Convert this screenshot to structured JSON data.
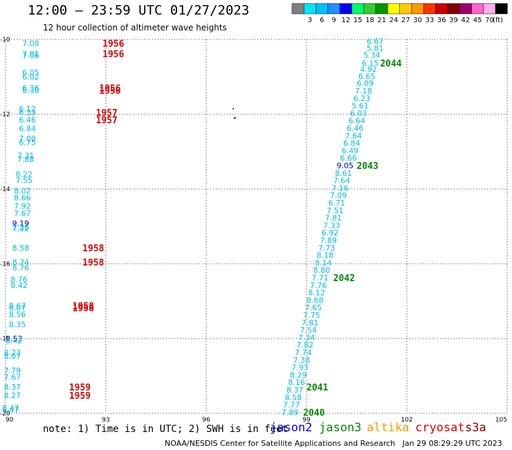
{
  "header": {
    "title": "12:00 – 23:59 UTC 01/27/2023",
    "subtitle": "12 hour collection of altimeter wave heights"
  },
  "scale": {
    "unit": "(ft)",
    "bins": [
      {
        "label": "",
        "color": "#7f7f7f"
      },
      {
        "label": "3",
        "color": "#00e5ff"
      },
      {
        "label": "6",
        "color": "#00bfff"
      },
      {
        "label": "9",
        "color": "#1e90ff"
      },
      {
        "label": "12",
        "color": "#0000ff"
      },
      {
        "label": "15",
        "color": "#00ff66"
      },
      {
        "label": "18",
        "color": "#33cc33"
      },
      {
        "label": "21",
        "color": "#009900"
      },
      {
        "label": "24",
        "color": "#ffff00"
      },
      {
        "label": "27",
        "color": "#ffcc00"
      },
      {
        "label": "30",
        "color": "#ff9900"
      },
      {
        "label": "33",
        "color": "#ff3300"
      },
      {
        "label": "36",
        "color": "#cc0000"
      },
      {
        "label": "39",
        "color": "#800000"
      },
      {
        "label": "42",
        "color": "#a0006e"
      },
      {
        "label": "45",
        "color": "#ff66cc"
      },
      {
        "label": "70",
        "color": "#ffaaee"
      },
      {
        "label": "",
        "color": "#000000"
      }
    ]
  },
  "axes": {
    "lon_ticks": [
      "90",
      "93",
      "96",
      "99",
      "102",
      "105"
    ],
    "lat_ticks": [
      "-10",
      "-12",
      "-14",
      "-16",
      "-18",
      "-20"
    ]
  },
  "map": {
    "lon_min": 90,
    "lon_max": 105,
    "lat_min": -20,
    "lat_max": -10,
    "gridlines": true,
    "land_marker": "»"
  },
  "colors": {
    "swh": "#00bbee",
    "swh_high": "#0000cc",
    "time_jason3": "#008800",
    "time_cryosat": "#dd0000"
  },
  "track_west": [
    {
      "v": "7.08",
      "lon": 90.5,
      "lat": -10.1
    },
    {
      "v": "7.01",
      "lon": 90.5,
      "lat": -10.38
    },
    {
      "v": "7.06",
      "lon": 90.5,
      "lat": -10.43
    },
    {
      "v": "6.05",
      "lon": 90.5,
      "lat": -10.88
    },
    {
      "v": "6.02",
      "lon": 90.5,
      "lat": -11.0
    },
    {
      "v": "6.36",
      "lon": 90.5,
      "lat": -11.3
    },
    {
      "v": "6.30",
      "lon": 90.5,
      "lat": -11.36
    },
    {
      "v": "6.12",
      "lon": 90.4,
      "lat": -11.85
    },
    {
      "v": "6.39",
      "lon": 90.4,
      "lat": -11.95
    },
    {
      "v": "6.46",
      "lon": 90.4,
      "lat": -12.15
    },
    {
      "v": "6.84",
      "lon": 90.4,
      "lat": -12.38
    },
    {
      "v": "7.00",
      "lon": 90.4,
      "lat": -12.65
    },
    {
      "v": "6.75",
      "lon": 90.4,
      "lat": -12.75
    },
    {
      "v": "7.31",
      "lon": 90.35,
      "lat": -13.1
    },
    {
      "v": "7.88",
      "lon": 90.35,
      "lat": -13.2
    },
    {
      "v": "8.22",
      "lon": 90.3,
      "lat": -13.6
    },
    {
      "v": "7.55",
      "lon": 90.3,
      "lat": -13.77
    },
    {
      "v": "8.02",
      "lon": 90.25,
      "lat": -14.05
    },
    {
      "v": "8.66",
      "lon": 90.25,
      "lat": -14.23
    },
    {
      "v": "7.92",
      "lon": 90.25,
      "lat": -14.45
    },
    {
      "v": "7.67",
      "lon": 90.25,
      "lat": -14.65
    },
    {
      "v": "9.19",
      "lon": 90.2,
      "lat": -14.92,
      "hi": true
    },
    {
      "v": "7.26",
      "lon": 90.2,
      "lat": -15.02
    },
    {
      "v": "7.32",
      "lon": 90.2,
      "lat": -15.06
    },
    {
      "v": "8.58",
      "lon": 90.2,
      "lat": -15.57
    },
    {
      "v": "8.74",
      "lon": 90.2,
      "lat": -15.95
    },
    {
      "v": "8.76",
      "lon": 90.2,
      "lat": -16.1
    },
    {
      "v": "8.76",
      "lon": 90.15,
      "lat": -16.42
    },
    {
      "v": "8.42",
      "lon": 90.15,
      "lat": -16.57
    },
    {
      "v": "8.67",
      "lon": 90.1,
      "lat": -17.12
    },
    {
      "v": "8.07",
      "lon": 90.1,
      "lat": -17.18
    },
    {
      "v": "8.56",
      "lon": 90.1,
      "lat": -17.35
    },
    {
      "v": "8.35",
      "lon": 90.1,
      "lat": -17.62
    },
    {
      "v": "9.53",
      "lon": 90.0,
      "lat": -18.0,
      "hi": true
    },
    {
      "v": "8.42",
      "lon": 90.0,
      "lat": -18.06
    },
    {
      "v": "8.23",
      "lon": 89.95,
      "lat": -18.37
    },
    {
      "v": "8.07",
      "lon": 89.95,
      "lat": -18.47
    },
    {
      "v": "7.79",
      "lon": 89.95,
      "lat": -18.85
    },
    {
      "v": "7.67",
      "lon": 89.95,
      "lat": -19.03
    },
    {
      "v": "8.37",
      "lon": 89.95,
      "lat": -19.3
    },
    {
      "v": "8.27",
      "lon": 89.95,
      "lat": -19.52
    },
    {
      "v": "8.47",
      "lon": 89.9,
      "lat": -19.85
    },
    {
      "v": "8.47",
      "lon": 89.9,
      "lat": -19.91
    }
  ],
  "track_east": [
    {
      "v": "6.67",
      "lon": 100.8,
      "lat": -10.05
    },
    {
      "v": "5.81",
      "lon": 100.8,
      "lat": -10.23
    },
    {
      "v": "5.34",
      "lon": 100.7,
      "lat": -10.42
    },
    {
      "v": "6.15",
      "lon": 100.65,
      "lat": -10.63
    },
    {
      "v": "4.92",
      "lon": 100.6,
      "lat": -10.8
    },
    {
      "v": "6.65",
      "lon": 100.55,
      "lat": -10.98
    },
    {
      "v": "6.09",
      "lon": 100.5,
      "lat": -11.17
    },
    {
      "v": "7.18",
      "lon": 100.45,
      "lat": -11.37
    },
    {
      "v": "6.23",
      "lon": 100.4,
      "lat": -11.57
    },
    {
      "v": "5.61",
      "lon": 100.35,
      "lat": -11.77
    },
    {
      "v": "6.03",
      "lon": 100.3,
      "lat": -11.97
    },
    {
      "v": "6.64",
      "lon": 100.25,
      "lat": -12.17
    },
    {
      "v": "6.46",
      "lon": 100.2,
      "lat": -12.37
    },
    {
      "v": "7.64",
      "lon": 100.15,
      "lat": -12.57
    },
    {
      "v": "6.84",
      "lon": 100.1,
      "lat": -12.77
    },
    {
      "v": "6.49",
      "lon": 100.05,
      "lat": -12.97
    },
    {
      "v": "6.66",
      "lon": 100.0,
      "lat": -13.17
    },
    {
      "v": "9.05",
      "lon": 99.9,
      "lat": -13.37,
      "hi": true
    },
    {
      "v": "8.61",
      "lon": 99.85,
      "lat": -13.57
    },
    {
      "v": "7.64",
      "lon": 99.8,
      "lat": -13.77
    },
    {
      "v": "7.16",
      "lon": 99.75,
      "lat": -13.97
    },
    {
      "v": "7.09",
      "lon": 99.7,
      "lat": -14.17
    },
    {
      "v": "6.71",
      "lon": 99.65,
      "lat": -14.37
    },
    {
      "v": "7.51",
      "lon": 99.6,
      "lat": -14.57
    },
    {
      "v": "7.81",
      "lon": 99.55,
      "lat": -14.77
    },
    {
      "v": "7.33",
      "lon": 99.5,
      "lat": -14.97
    },
    {
      "v": "6.92",
      "lon": 99.45,
      "lat": -15.17
    },
    {
      "v": "7.89",
      "lon": 99.4,
      "lat": -15.37
    },
    {
      "v": "7.73",
      "lon": 99.35,
      "lat": -15.57
    },
    {
      "v": "8.18",
      "lon": 99.3,
      "lat": -15.77
    },
    {
      "v": "8.14",
      "lon": 99.25,
      "lat": -15.97
    },
    {
      "v": "8.80",
      "lon": 99.2,
      "lat": -16.17
    },
    {
      "v": "7.71",
      "lon": 99.15,
      "lat": -16.37
    },
    {
      "v": "7.76",
      "lon": 99.1,
      "lat": -16.57
    },
    {
      "v": "8.12",
      "lon": 99.05,
      "lat": -16.77
    },
    {
      "v": "8.68",
      "lon": 99.0,
      "lat": -16.97
    },
    {
      "v": "7.65",
      "lon": 98.95,
      "lat": -17.17
    },
    {
      "v": "7.75",
      "lon": 98.9,
      "lat": -17.37
    },
    {
      "v": "7.81",
      "lon": 98.85,
      "lat": -17.57
    },
    {
      "v": "7.54",
      "lon": 98.8,
      "lat": -17.77
    },
    {
      "v": "7.34",
      "lon": 98.75,
      "lat": -17.97
    },
    {
      "v": "7.82",
      "lon": 98.7,
      "lat": -18.17
    },
    {
      "v": "7.74",
      "lon": 98.65,
      "lat": -18.37
    },
    {
      "v": "7.38",
      "lon": 98.6,
      "lat": -18.57
    },
    {
      "v": "7.93",
      "lon": 98.55,
      "lat": -18.77
    },
    {
      "v": "8.29",
      "lon": 98.5,
      "lat": -18.97
    },
    {
      "v": "8.16",
      "lon": 98.45,
      "lat": -19.17
    },
    {
      "v": "8.37",
      "lon": 98.4,
      "lat": -19.37
    },
    {
      "v": "8.58",
      "lon": 98.35,
      "lat": -19.57
    },
    {
      "v": "7.77",
      "lon": 98.3,
      "lat": -19.77
    },
    {
      "v": "7.89",
      "lon": 98.25,
      "lat": -19.97
    }
  ],
  "times_west": [
    {
      "t": "1956",
      "lon": 92.9,
      "lat": -10.1
    },
    {
      "t": "1956",
      "lon": 92.9,
      "lat": -10.38
    },
    {
      "t": "1956",
      "lon": 92.8,
      "lat": -11.3
    },
    {
      "t": "1956",
      "lon": 92.8,
      "lat": -11.36
    },
    {
      "t": "1957",
      "lon": 92.7,
      "lat": -11.95
    },
    {
      "t": "1957",
      "lon": 92.7,
      "lat": -12.15
    },
    {
      "t": "1958",
      "lon": 92.3,
      "lat": -15.57
    },
    {
      "t": "1958",
      "lon": 92.3,
      "lat": -15.95
    },
    {
      "t": "1958",
      "lon": 92.0,
      "lat": -17.12
    },
    {
      "t": "1958",
      "lon": 92.0,
      "lat": -17.18
    },
    {
      "t": "1959",
      "lon": 91.9,
      "lat": -19.3
    },
    {
      "t": "1959",
      "lon": 91.9,
      "lat": -19.52
    }
  ],
  "times_east": [
    {
      "t": "2044",
      "lon": 101.2,
      "lat": -10.63
    },
    {
      "t": "2043",
      "lon": 100.5,
      "lat": -13.37
    },
    {
      "t": "2042",
      "lon": 99.8,
      "lat": -16.37
    },
    {
      "t": "2041",
      "lon": 99.0,
      "lat": -19.3
    },
    {
      "t": "2040",
      "lon": 98.9,
      "lat": -19.97
    }
  ],
  "footer": {
    "note": "note: 1) Time is in UTC; 2) SWH is in feet",
    "missions": [
      {
        "name": "jason2",
        "color": "#0000dd"
      },
      {
        "name": "jason3",
        "color": "#008800"
      },
      {
        "name": "altika",
        "color": "#ff9900"
      },
      {
        "name": "cryosat",
        "color": "#dd0000"
      },
      {
        "name": "s3a",
        "color": "#880000"
      }
    ],
    "credit": "NOAA/NESDIS Center for Satellite Applications and Research   Jan 29 08:29:29 UTC 2023"
  }
}
